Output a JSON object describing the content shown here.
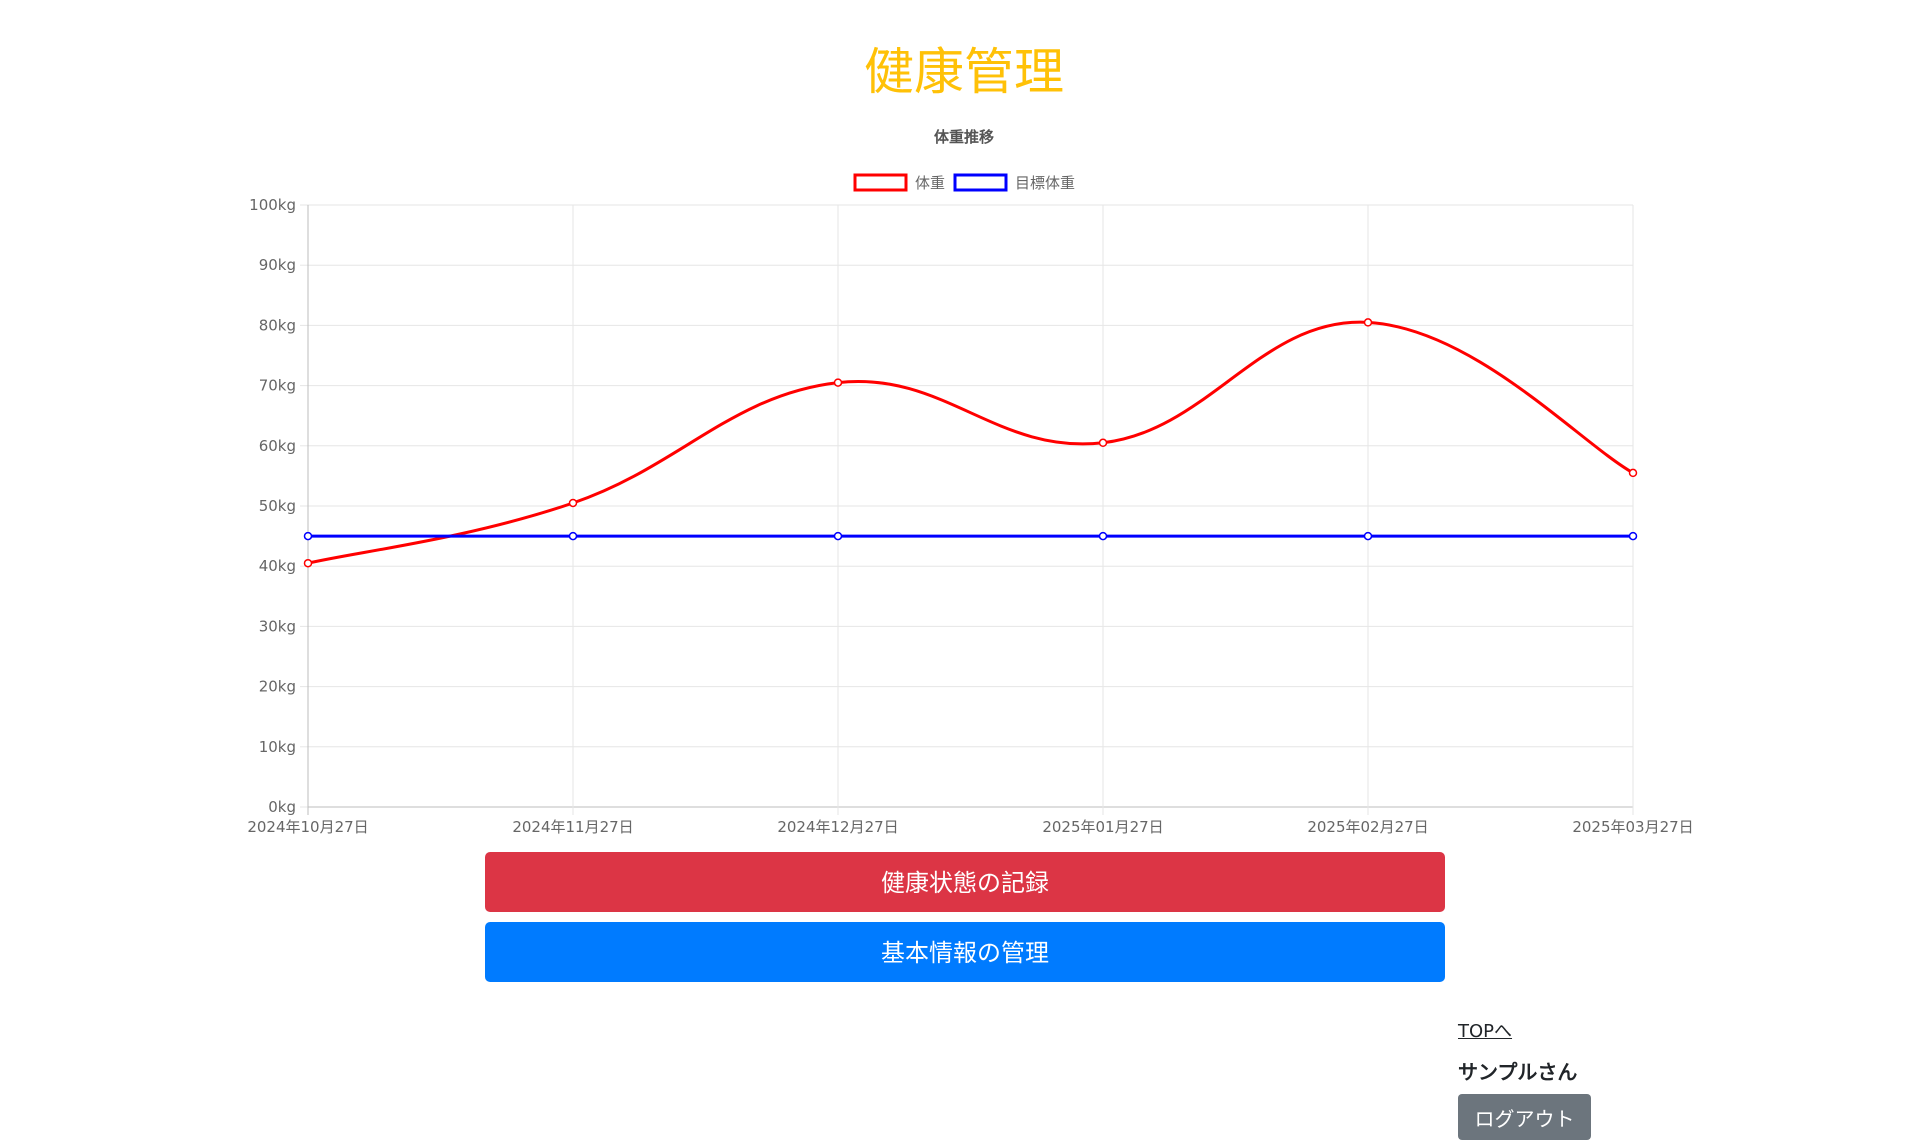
{
  "page": {
    "title": "健康管理"
  },
  "chart_data": {
    "type": "line",
    "title": "体重推移",
    "xlabel": "",
    "ylabel": "",
    "categories": [
      "2024年10月27日",
      "2024年11月27日",
      "2024年12月27日",
      "2025年01月27日",
      "2025年02月27日",
      "2025年03月27日"
    ],
    "series": [
      {
        "name": "体重",
        "color": "#ff0000",
        "values": [
          40.5,
          50.5,
          70.5,
          60.5,
          80.5,
          55.5
        ]
      },
      {
        "name": "目標体重",
        "color": "#0000ff",
        "values": [
          45,
          45,
          45,
          45,
          45,
          45
        ]
      }
    ],
    "ylim": [
      0,
      100
    ],
    "yticks": [
      "0kg",
      "10kg",
      "20kg",
      "30kg",
      "40kg",
      "50kg",
      "60kg",
      "70kg",
      "80kg",
      "90kg",
      "100kg"
    ],
    "grid": true,
    "legend": "top"
  },
  "buttons": {
    "record": "健康状態の記録",
    "basic": "基本情報の管理"
  },
  "nav": {
    "top_link": "TOPへ",
    "user_name": "サンプルさん",
    "logout": "ログアウト"
  }
}
